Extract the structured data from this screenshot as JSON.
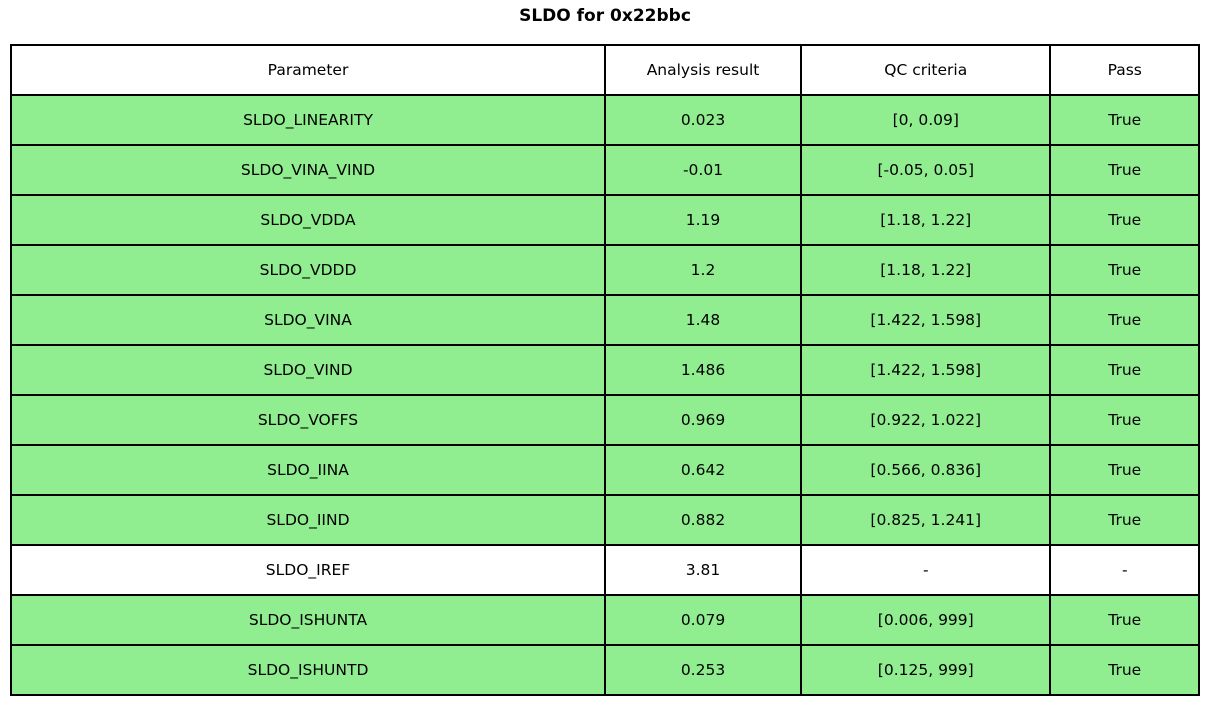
{
  "title": "SLDO for 0x22bbc",
  "colors": {
    "pass_row_background": "#90ee90",
    "neutral_row_background": "#ffffff",
    "border": "#000000"
  },
  "chart_data": {
    "type": "table",
    "title": "SLDO for 0x22bbc",
    "columns": [
      "Parameter",
      "Analysis result",
      "QC criteria",
      "Pass"
    ],
    "rows": [
      {
        "parameter": "SLDO_LINEARITY",
        "result": "0.023",
        "criteria": "[0, 0.09]",
        "pass": "True",
        "highlight": true
      },
      {
        "parameter": "SLDO_VINA_VIND",
        "result": "-0.01",
        "criteria": "[-0.05, 0.05]",
        "pass": "True",
        "highlight": true
      },
      {
        "parameter": "SLDO_VDDA",
        "result": "1.19",
        "criteria": "[1.18, 1.22]",
        "pass": "True",
        "highlight": true
      },
      {
        "parameter": "SLDO_VDDD",
        "result": "1.2",
        "criteria": "[1.18, 1.22]",
        "pass": "True",
        "highlight": true
      },
      {
        "parameter": "SLDO_VINA",
        "result": "1.48",
        "criteria": "[1.422, 1.598]",
        "pass": "True",
        "highlight": true
      },
      {
        "parameter": "SLDO_VIND",
        "result": "1.486",
        "criteria": "[1.422, 1.598]",
        "pass": "True",
        "highlight": true
      },
      {
        "parameter": "SLDO_VOFFS",
        "result": "0.969",
        "criteria": "[0.922, 1.022]",
        "pass": "True",
        "highlight": true
      },
      {
        "parameter": "SLDO_IINA",
        "result": "0.642",
        "criteria": "[0.566, 0.836]",
        "pass": "True",
        "highlight": true
      },
      {
        "parameter": "SLDO_IIND",
        "result": "0.882",
        "criteria": "[0.825, 1.241]",
        "pass": "True",
        "highlight": true
      },
      {
        "parameter": "SLDO_IREF",
        "result": "3.81",
        "criteria": "-",
        "pass": "-",
        "highlight": false
      },
      {
        "parameter": "SLDO_ISHUNTA",
        "result": "0.079",
        "criteria": "[0.006, 999]",
        "pass": "True",
        "highlight": true
      },
      {
        "parameter": "SLDO_ISHUNTD",
        "result": "0.253",
        "criteria": "[0.125, 999]",
        "pass": "True",
        "highlight": true
      }
    ]
  }
}
